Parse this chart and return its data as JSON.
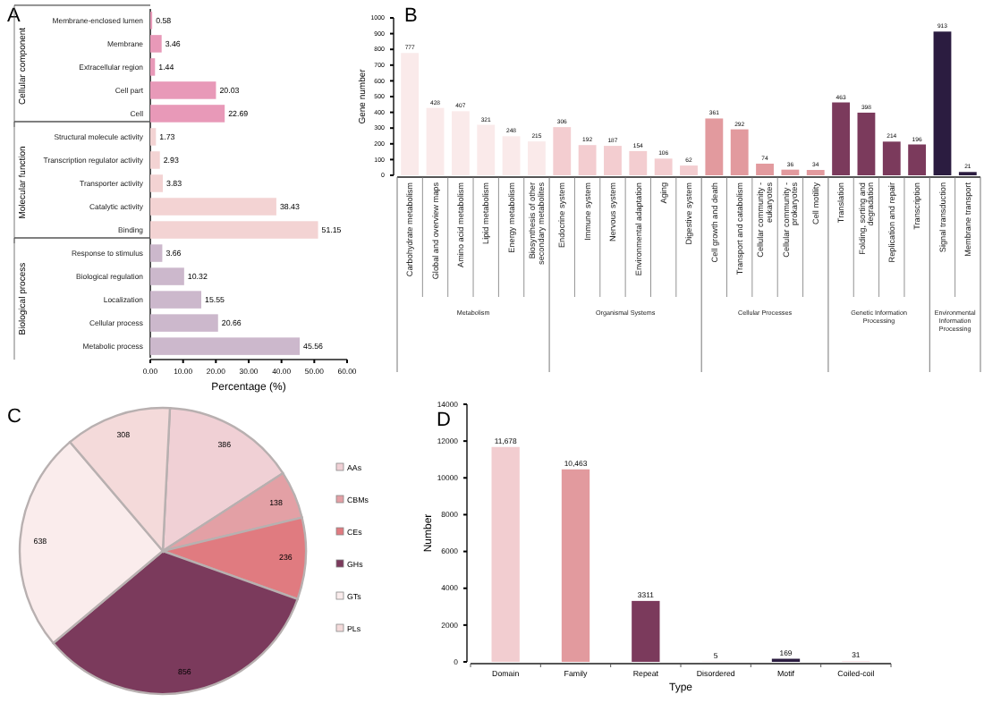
{
  "chart_data": [
    {
      "type": "bar",
      "title": "A",
      "orientation": "horizontal",
      "categories": [
        "Membrane-enclosed lumen",
        "Membrane",
        "Extracellular region",
        "Cell part",
        "Cell",
        "Structural molecule activity",
        "Transcription regulator activity",
        "Transporter activity",
        "Catalytic activity",
        "Binding",
        "Response to stimulus",
        "Biological regulation",
        "Localization",
        "Cellular process",
        "Metabolic process"
      ],
      "values": [
        0.58,
        3.46,
        1.44,
        20.03,
        22.69,
        1.73,
        2.93,
        3.83,
        38.43,
        51.15,
        3.66,
        10.32,
        15.55,
        20.66,
        45.56
      ],
      "colors": [
        "#e899b8",
        "#e899b8",
        "#e899b8",
        "#e899b8",
        "#e899b8",
        "#f3d3d3",
        "#f3d3d3",
        "#f3d3d3",
        "#f3d3d3",
        "#f3d3d3",
        "#ccb8cc",
        "#ccb8cc",
        "#ccb8cc",
        "#ccb8cc",
        "#ccb8cc"
      ],
      "data_labels": true,
      "xlim": [
        0,
        60
      ],
      "xticks": [
        {
          "value": 0,
          "label": "0.00"
        },
        {
          "value": 10,
          "label": "10.00"
        },
        {
          "value": 20,
          "label": "20.00"
        },
        {
          "value": 30,
          "label": "30.00"
        },
        {
          "value": 40,
          "label": "40.00"
        },
        {
          "value": 50,
          "label": "50.00"
        },
        {
          "value": 60,
          "label": "60.00"
        }
      ],
      "xlabel": "Percentage (%)",
      "annotations": [
        "Cellular component",
        "Molecular function",
        "Biological process"
      ]
    },
    {
      "type": "bar",
      "title": "B",
      "categories": [
        "Carbohydrate metabolism",
        "Global and overview maps",
        "Amino acid metabolism",
        "Lipid metabolism",
        "Energy metabolism",
        "Biosynthesis of other secondary metabolites",
        "Endocrine system",
        "Immune system",
        "Nervous system",
        "Environmental adaptation",
        "Aging",
        "Digestive system",
        "Cell growth and death",
        "Transport and catabolism",
        "Cellular community - eukaryotes",
        "Cellular community - prokaryotes",
        "Cell motility",
        "Translation",
        "Folding, sorting and degradation",
        "Replication and repair",
        "Transcription",
        "Signal transduction",
        "Membrane transport"
      ],
      "values": [
        777,
        428,
        407,
        321,
        248,
        215,
        306,
        192,
        187,
        154,
        106,
        62,
        361,
        292,
        74,
        36,
        34,
        463,
        398,
        214,
        196,
        913,
        21
      ],
      "colors": [
        "#faeaea",
        "#faeaea",
        "#faeaea",
        "#faeaea",
        "#faeaea",
        "#faeaea",
        "#f3cdd0",
        "#f3cdd0",
        "#f3cdd0",
        "#f3cdd0",
        "#f3cdd0",
        "#f3cdd0",
        "#e29a9e",
        "#e29a9e",
        "#e29a9e",
        "#e29a9e",
        "#e29a9e",
        "#7b3a5c",
        "#7b3a5c",
        "#7b3a5c",
        "#7b3a5c",
        "#2b1c40",
        "#2b1c40"
      ],
      "data_labels": true,
      "ylim": [
        0,
        1000
      ],
      "yticks": [
        0,
        100,
        200,
        300,
        400,
        500,
        600,
        700,
        800,
        900,
        1000
      ],
      "ylabel": "Gene number",
      "annotations": [
        "Metabolism",
        "Organismal Systems",
        "Cellular Processes",
        "Genetic Information Processing",
        "Environmental Information Processing"
      ]
    },
    {
      "type": "pie",
      "title": "C",
      "categories": [
        "AAs",
        "CBMs",
        "CEs",
        "GHs",
        "GTs",
        "PLs"
      ],
      "values": [
        386,
        138,
        236,
        856,
        638,
        308
      ],
      "colors": [
        "#f0d0d5",
        "#e3a0a5",
        "#e07b80",
        "#7b3a5c",
        "#faecec",
        "#f4dada"
      ],
      "data_labels": true,
      "legend": "right"
    },
    {
      "type": "bar",
      "title": "D",
      "categories": [
        "Domain",
        "Family",
        "Repeat",
        "Disordered",
        "Motif",
        "Coiled-coil"
      ],
      "values": [
        11678,
        10463,
        3311,
        5,
        169,
        31
      ],
      "colors": [
        "#f2cdd0",
        "#e29a9e",
        "#7b3a5c",
        "#e07b80",
        "#2b1c40",
        "#f0d0d5"
      ],
      "value_labels": [
        "11,678",
        "10,463",
        "3311",
        "5",
        "169",
        "31"
      ],
      "ylim": [
        0,
        14000
      ],
      "yticks": [
        0,
        2000,
        4000,
        6000,
        8000,
        10000,
        12000,
        14000
      ],
      "xlabel": "Type",
      "ylabel": "Number"
    }
  ]
}
